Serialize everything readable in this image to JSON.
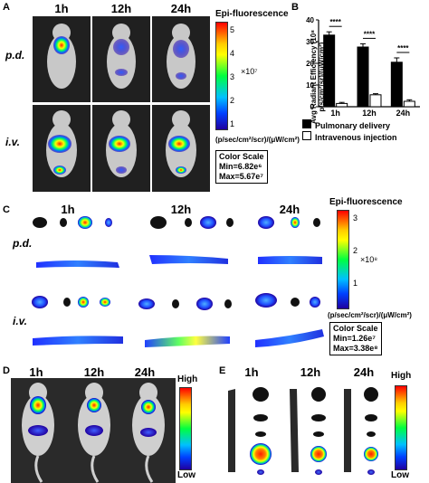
{
  "panels": {
    "A": {
      "letter": "A",
      "times": [
        "1h",
        "12h",
        "24h"
      ],
      "rows": [
        "p.d.",
        "i.v."
      ],
      "colorbar": {
        "title": "Epi-fluorescence",
        "ticks": [
          "5",
          "4",
          "3",
          "2",
          "1"
        ],
        "exponent": "×10⁷",
        "unit": "(p/sec/cm²/scr)/(μW/cm²)"
      },
      "scale": {
        "title": "Color Scale",
        "min": "Min=6.82e⁶",
        "max": "Max=5.67e⁷"
      }
    },
    "B": {
      "letter": "B",
      "chart_data": {
        "type": "bar",
        "categories": [
          "1h",
          "12h",
          "24h"
        ],
        "ylabel": "Avg Radiant Efficiency (10⁸ p/s/cm²/sr)/(μW/cm²)",
        "ylim": [
          0,
          40
        ],
        "yticks": [
          "0",
          "10",
          "20",
          "30",
          "40"
        ],
        "series": [
          {
            "name": "Pulmonary delivery",
            "values": [
              33,
              27.5,
              20.5
            ],
            "errors": [
              1.5,
              1.5,
              2
            ],
            "color": "#000000"
          },
          {
            "name": "Intravenous injection",
            "values": [
              1.5,
              5.5,
              2.5
            ],
            "errors": [
              0.5,
              0.5,
              0.7
            ],
            "color": "#ffffff"
          }
        ],
        "significance": [
          "****",
          "****",
          "****"
        ]
      }
    },
    "C": {
      "letter": "C",
      "times": [
        "1h",
        "12h",
        "24h"
      ],
      "rows": [
        "p.d.",
        "i.v."
      ],
      "colorbar": {
        "title": "Epi-fluorescence",
        "ticks": [
          "3",
          "2",
          "1"
        ],
        "exponent": "×10⁸",
        "unit": "(p/sec/cm²/scr)/(μW/cm²)"
      },
      "scale": {
        "title": "Color Scale",
        "min": "Min=1.26e⁷",
        "max": "Max=3.38e⁸"
      }
    },
    "D": {
      "letter": "D",
      "times": [
        "1h",
        "12h",
        "24h"
      ],
      "colorbar": {
        "high": "High",
        "low": "Low"
      }
    },
    "E": {
      "letter": "E",
      "times": [
        "1h",
        "12h",
        "24h"
      ],
      "colorbar": {
        "high": "High",
        "low": "Low"
      }
    }
  }
}
